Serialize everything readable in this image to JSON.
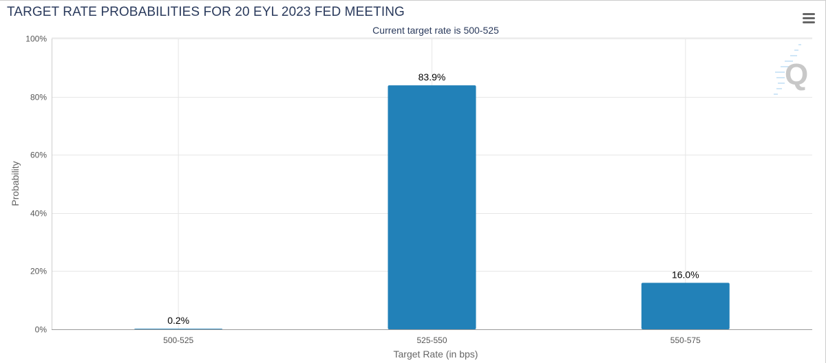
{
  "header": {
    "title": "TARGET RATE PROBABILITIES FOR 20 EYL 2023 FED MEETING",
    "subtitle": "Current target rate is 500-525",
    "menu_icon": "hamburger-menu-icon"
  },
  "chart_data": {
    "type": "bar",
    "title": "TARGET RATE PROBABILITIES FOR 20 EYL 2023 FED MEETING",
    "subtitle": "Current target rate is 500-525",
    "categories": [
      "500-525",
      "525-550",
      "550-575"
    ],
    "values": [
      0.2,
      83.9,
      16.0
    ],
    "data_labels": [
      "0.2%",
      "83.9%",
      "16.0%"
    ],
    "xlabel": "Target Rate (in bps)",
    "ylabel": "Probability",
    "ylim": [
      0,
      100
    ],
    "yticks": [
      "0%",
      "20%",
      "40%",
      "60%",
      "80%",
      "100%"
    ],
    "grid": true,
    "bar_color": "#2281b8"
  }
}
